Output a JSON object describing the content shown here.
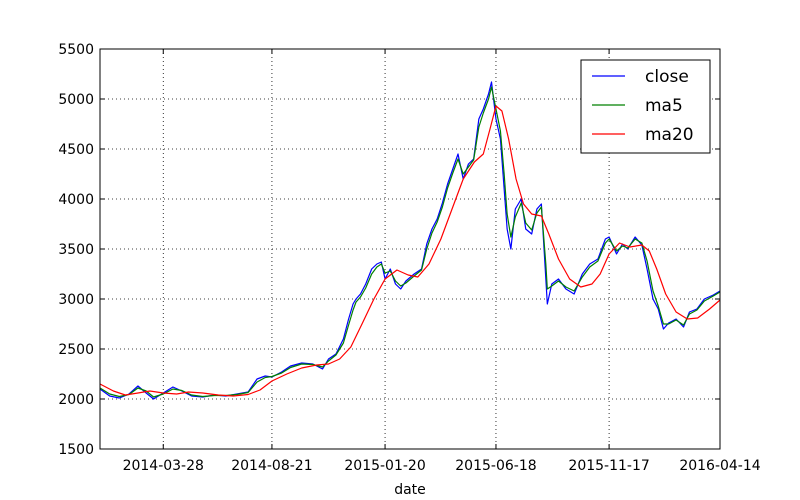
{
  "chart_data": {
    "type": "line",
    "xlabel": "date",
    "ylabel": "",
    "title": "",
    "x_range": [
      "2014-01-02",
      "2016-04-14"
    ],
    "ylim": [
      1500,
      5500
    ],
    "grid": true,
    "legend_position": "top-right",
    "x_tick_labels": [
      "2014-03-28",
      "2014-08-21",
      "2015-01-20",
      "2015-06-18",
      "2015-11-17",
      "2016-04-14"
    ],
    "y_tick_labels": [
      "1500",
      "2000",
      "2500",
      "3000",
      "3500",
      "4000",
      "4500",
      "5000",
      "5500"
    ],
    "series": [
      {
        "name": "close",
        "color": "#0000ff",
        "points": [
          [
            "2014-01-02",
            2100
          ],
          [
            "2014-01-15",
            2030
          ],
          [
            "2014-01-28",
            2010
          ],
          [
            "2014-02-10",
            2050
          ],
          [
            "2014-02-22",
            2130
          ],
          [
            "2014-03-05",
            2060
          ],
          [
            "2014-03-15",
            2000
          ],
          [
            "2014-03-28",
            2060
          ],
          [
            "2014-04-10",
            2120
          ],
          [
            "2014-04-22",
            2080
          ],
          [
            "2014-05-05",
            2030
          ],
          [
            "2014-05-20",
            2020
          ],
          [
            "2014-06-05",
            2040
          ],
          [
            "2014-06-20",
            2030
          ],
          [
            "2014-07-05",
            2050
          ],
          [
            "2014-07-20",
            2070
          ],
          [
            "2014-08-01",
            2200
          ],
          [
            "2014-08-12",
            2230
          ],
          [
            "2014-08-21",
            2220
          ],
          [
            "2014-09-03",
            2270
          ],
          [
            "2014-09-15",
            2330
          ],
          [
            "2014-09-30",
            2360
          ],
          [
            "2014-10-15",
            2350
          ],
          [
            "2014-10-28",
            2300
          ],
          [
            "2014-11-05",
            2400
          ],
          [
            "2014-11-15",
            2450
          ],
          [
            "2014-11-25",
            2600
          ],
          [
            "2014-12-02",
            2800
          ],
          [
            "2014-12-08",
            2950
          ],
          [
            "2014-12-12",
            3000
          ],
          [
            "2014-12-18",
            3050
          ],
          [
            "2014-12-25",
            3150
          ],
          [
            "2015-01-02",
            3300
          ],
          [
            "2015-01-09",
            3350
          ],
          [
            "2015-01-15",
            3370
          ],
          [
            "2015-01-20",
            3200
          ],
          [
            "2015-01-27",
            3300
          ],
          [
            "2015-02-03",
            3150
          ],
          [
            "2015-02-10",
            3100
          ],
          [
            "2015-02-17",
            3180
          ],
          [
            "2015-02-28",
            3250
          ],
          [
            "2015-03-10",
            3300
          ],
          [
            "2015-03-17",
            3550
          ],
          [
            "2015-03-24",
            3700
          ],
          [
            "2015-03-31",
            3800
          ],
          [
            "2015-04-07",
            3960
          ],
          [
            "2015-04-14",
            4150
          ],
          [
            "2015-04-21",
            4300
          ],
          [
            "2015-04-28",
            4450
          ],
          [
            "2015-05-05",
            4200
          ],
          [
            "2015-05-12",
            4350
          ],
          [
            "2015-05-19",
            4400
          ],
          [
            "2015-05-26",
            4800
          ],
          [
            "2015-06-01",
            4900
          ],
          [
            "2015-06-08",
            5050
          ],
          [
            "2015-06-12",
            5170
          ],
          [
            "2015-06-18",
            4800
          ],
          [
            "2015-06-24",
            4600
          ],
          [
            "2015-06-29",
            4100
          ],
          [
            "2015-07-03",
            3700
          ],
          [
            "2015-07-08",
            3500
          ],
          [
            "2015-07-14",
            3900
          ],
          [
            "2015-07-22",
            4000
          ],
          [
            "2015-07-28",
            3700
          ],
          [
            "2015-08-05",
            3650
          ],
          [
            "2015-08-12",
            3900
          ],
          [
            "2015-08-18",
            3950
          ],
          [
            "2015-08-24",
            3200
          ],
          [
            "2015-08-26",
            2950
          ],
          [
            "2015-09-01",
            3150
          ],
          [
            "2015-09-10",
            3200
          ],
          [
            "2015-09-20",
            3100
          ],
          [
            "2015-10-01",
            3050
          ],
          [
            "2015-10-12",
            3250
          ],
          [
            "2015-10-22",
            3350
          ],
          [
            "2015-11-02",
            3400
          ],
          [
            "2015-11-12",
            3600
          ],
          [
            "2015-11-17",
            3620
          ],
          [
            "2015-11-27",
            3450
          ],
          [
            "2015-12-05",
            3550
          ],
          [
            "2015-12-12",
            3500
          ],
          [
            "2015-12-22",
            3620
          ],
          [
            "2015-12-31",
            3540
          ],
          [
            "2016-01-07",
            3300
          ],
          [
            "2016-01-15",
            3000
          ],
          [
            "2016-01-22",
            2900
          ],
          [
            "2016-01-29",
            2700
          ],
          [
            "2016-02-05",
            2760
          ],
          [
            "2016-02-15",
            2800
          ],
          [
            "2016-02-25",
            2720
          ],
          [
            "2016-03-04",
            2870
          ],
          [
            "2016-03-14",
            2900
          ],
          [
            "2016-03-24",
            3000
          ],
          [
            "2016-04-05",
            3040
          ],
          [
            "2016-04-14",
            3080
          ]
        ]
      },
      {
        "name": "ma5",
        "color": "#008000",
        "points": [
          [
            "2014-01-02",
            2110
          ],
          [
            "2014-01-15",
            2050
          ],
          [
            "2014-01-28",
            2025
          ],
          [
            "2014-02-10",
            2045
          ],
          [
            "2014-02-22",
            2110
          ],
          [
            "2014-03-05",
            2080
          ],
          [
            "2014-03-15",
            2020
          ],
          [
            "2014-03-28",
            2050
          ],
          [
            "2014-04-10",
            2100
          ],
          [
            "2014-04-22",
            2085
          ],
          [
            "2014-05-05",
            2040
          ],
          [
            "2014-05-20",
            2025
          ],
          [
            "2014-06-05",
            2035
          ],
          [
            "2014-06-20",
            2035
          ],
          [
            "2014-07-05",
            2045
          ],
          [
            "2014-07-20",
            2065
          ],
          [
            "2014-08-01",
            2170
          ],
          [
            "2014-08-12",
            2215
          ],
          [
            "2014-08-21",
            2225
          ],
          [
            "2014-09-03",
            2260
          ],
          [
            "2014-09-15",
            2315
          ],
          [
            "2014-09-30",
            2350
          ],
          [
            "2014-10-15",
            2345
          ],
          [
            "2014-10-28",
            2320
          ],
          [
            "2014-11-05",
            2380
          ],
          [
            "2014-11-15",
            2440
          ],
          [
            "2014-11-25",
            2560
          ],
          [
            "2014-12-02",
            2740
          ],
          [
            "2014-12-08",
            2890
          ],
          [
            "2014-12-12",
            2970
          ],
          [
            "2014-12-18",
            3020
          ],
          [
            "2014-12-25",
            3110
          ],
          [
            "2015-01-02",
            3250
          ],
          [
            "2015-01-09",
            3320
          ],
          [
            "2015-01-15",
            3350
          ],
          [
            "2015-01-20",
            3260
          ],
          [
            "2015-01-27",
            3280
          ],
          [
            "2015-02-03",
            3180
          ],
          [
            "2015-02-10",
            3130
          ],
          [
            "2015-02-17",
            3160
          ],
          [
            "2015-02-28",
            3230
          ],
          [
            "2015-03-10",
            3290
          ],
          [
            "2015-03-17",
            3500
          ],
          [
            "2015-03-24",
            3660
          ],
          [
            "2015-03-31",
            3770
          ],
          [
            "2015-04-07",
            3920
          ],
          [
            "2015-04-14",
            4110
          ],
          [
            "2015-04-21",
            4260
          ],
          [
            "2015-04-28",
            4400
          ],
          [
            "2015-05-05",
            4250
          ],
          [
            "2015-05-12",
            4320
          ],
          [
            "2015-05-19",
            4390
          ],
          [
            "2015-05-26",
            4720
          ],
          [
            "2015-06-01",
            4860
          ],
          [
            "2015-06-08",
            5000
          ],
          [
            "2015-06-12",
            5120
          ],
          [
            "2015-06-18",
            4900
          ],
          [
            "2015-06-24",
            4680
          ],
          [
            "2015-06-29",
            4250
          ],
          [
            "2015-07-03",
            3850
          ],
          [
            "2015-07-08",
            3620
          ],
          [
            "2015-07-14",
            3820
          ],
          [
            "2015-07-22",
            3960
          ],
          [
            "2015-07-28",
            3760
          ],
          [
            "2015-08-05",
            3690
          ],
          [
            "2015-08-12",
            3860
          ],
          [
            "2015-08-18",
            3920
          ],
          [
            "2015-08-24",
            3350
          ],
          [
            "2015-08-26",
            3100
          ],
          [
            "2015-09-01",
            3130
          ],
          [
            "2015-09-10",
            3180
          ],
          [
            "2015-09-20",
            3120
          ],
          [
            "2015-10-01",
            3080
          ],
          [
            "2015-10-12",
            3220
          ],
          [
            "2015-10-22",
            3320
          ],
          [
            "2015-11-02",
            3380
          ],
          [
            "2015-11-12",
            3560
          ],
          [
            "2015-11-17",
            3600
          ],
          [
            "2015-11-27",
            3480
          ],
          [
            "2015-12-05",
            3530
          ],
          [
            "2015-12-12",
            3510
          ],
          [
            "2015-12-22",
            3600
          ],
          [
            "2015-12-31",
            3560
          ],
          [
            "2016-01-07",
            3380
          ],
          [
            "2016-01-15",
            3080
          ],
          [
            "2016-01-22",
            2930
          ],
          [
            "2016-01-29",
            2750
          ],
          [
            "2016-02-05",
            2750
          ],
          [
            "2016-02-15",
            2790
          ],
          [
            "2016-02-25",
            2740
          ],
          [
            "2016-03-04",
            2850
          ],
          [
            "2016-03-14",
            2890
          ],
          [
            "2016-03-24",
            2980
          ],
          [
            "2016-04-05",
            3030
          ],
          [
            "2016-04-14",
            3070
          ]
        ]
      },
      {
        "name": "ma20",
        "color": "#ff0000",
        "points": [
          [
            "2014-01-02",
            2150
          ],
          [
            "2014-01-20",
            2080
          ],
          [
            "2014-02-05",
            2040
          ],
          [
            "2014-02-22",
            2060
          ],
          [
            "2014-03-10",
            2080
          ],
          [
            "2014-03-28",
            2060
          ],
          [
            "2014-04-15",
            2050
          ],
          [
            "2014-05-01",
            2070
          ],
          [
            "2014-05-20",
            2060
          ],
          [
            "2014-06-10",
            2040
          ],
          [
            "2014-06-30",
            2030
          ],
          [
            "2014-07-20",
            2045
          ],
          [
            "2014-08-05",
            2090
          ],
          [
            "2014-08-21",
            2180
          ],
          [
            "2014-09-10",
            2250
          ],
          [
            "2014-09-30",
            2310
          ],
          [
            "2014-10-20",
            2340
          ],
          [
            "2014-11-05",
            2350
          ],
          [
            "2014-11-20",
            2400
          ],
          [
            "2014-12-05",
            2520
          ],
          [
            "2014-12-20",
            2750
          ],
          [
            "2015-01-05",
            3000
          ],
          [
            "2015-01-20",
            3200
          ],
          [
            "2015-02-05",
            3290
          ],
          [
            "2015-02-20",
            3240
          ],
          [
            "2015-03-05",
            3220
          ],
          [
            "2015-03-20",
            3350
          ],
          [
            "2015-04-05",
            3600
          ],
          [
            "2015-04-20",
            3900
          ],
          [
            "2015-05-05",
            4200
          ],
          [
            "2015-05-20",
            4370
          ],
          [
            "2015-06-01",
            4450
          ],
          [
            "2015-06-10",
            4700
          ],
          [
            "2015-06-18",
            4930
          ],
          [
            "2015-06-26",
            4880
          ],
          [
            "2015-07-05",
            4600
          ],
          [
            "2015-07-15",
            4200
          ],
          [
            "2015-07-25",
            3950
          ],
          [
            "2015-08-05",
            3850
          ],
          [
            "2015-08-18",
            3830
          ],
          [
            "2015-08-28",
            3650
          ],
          [
            "2015-09-10",
            3400
          ],
          [
            "2015-09-25",
            3200
          ],
          [
            "2015-10-10",
            3120
          ],
          [
            "2015-10-25",
            3150
          ],
          [
            "2015-11-05",
            3250
          ],
          [
            "2015-11-17",
            3450
          ],
          [
            "2015-12-01",
            3560
          ],
          [
            "2015-12-15",
            3520
          ],
          [
            "2015-12-31",
            3540
          ],
          [
            "2016-01-10",
            3480
          ],
          [
            "2016-01-20",
            3300
          ],
          [
            "2016-02-01",
            3050
          ],
          [
            "2016-02-15",
            2870
          ],
          [
            "2016-03-01",
            2800
          ],
          [
            "2016-03-15",
            2810
          ],
          [
            "2016-03-31",
            2900
          ],
          [
            "2016-04-14",
            2990
          ]
        ]
      }
    ]
  }
}
